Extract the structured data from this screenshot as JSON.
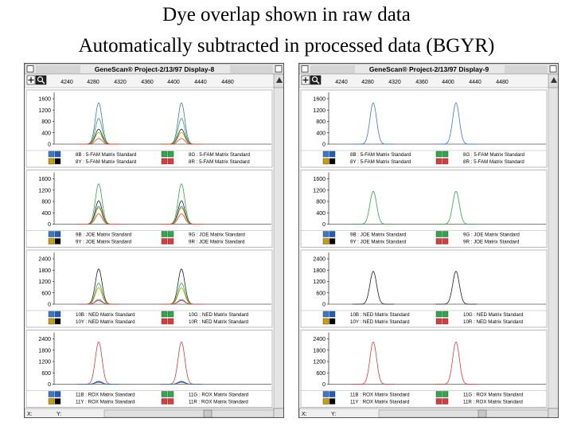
{
  "heading": {
    "line1": "Dye overlap shown in raw data",
    "line2": "Automatically subtracted in processed data (BGYR)"
  },
  "colors": {
    "blue": "#3a78c8",
    "green": "#2ea84a",
    "yellow": "#c8a000",
    "red": "#d83c3c",
    "black": "#202020"
  },
  "windows": [
    {
      "title": "GeneScan® Project-2/13/97 Display-8",
      "mode": "raw",
      "x_ticks": [
        "4240",
        "4280",
        "4320",
        "4360",
        "4400",
        "4440",
        "4480"
      ],
      "status": {
        "x_label": "X:",
        "y_label": "Y:"
      },
      "panels": [
        {
          "y_ticks": [
            "1600",
            "1200",
            "800",
            "400",
            "0"
          ],
          "legend": [
            [
              "8B : 5-FAM Matrix Standard",
              "8G : 5-FAM Matrix Standard"
            ],
            [
              "8Y : 5-FAM Matrix Standard",
              "8R : 5-FAM Matrix Standard"
            ]
          ]
        },
        {
          "y_ticks": [
            "1600",
            "1200",
            "800",
            "400",
            "0"
          ],
          "legend": [
            [
              "9B : JOE Matrix Standard",
              "9G : JOE Matrix Standard"
            ],
            [
              "9Y : JOE Matrix Standard",
              "9R : JOE Matrix Standard"
            ]
          ]
        },
        {
          "y_ticks": [
            "2400",
            "1800",
            "1200",
            "600",
            "0"
          ],
          "legend": [
            [
              "10B : NED Matrix Standard",
              "10G : NED Matrix Standard"
            ],
            [
              "10Y : NED Matrix Standard",
              "10R : NED Matrix Standard"
            ]
          ]
        },
        {
          "y_ticks": [
            "2400",
            "1800",
            "1200",
            "600",
            "0"
          ],
          "legend": [
            [
              "11B : ROX Matrix Standard",
              "11G : ROX Matrix Standard"
            ],
            [
              "11Y : ROX Matrix Standard",
              "11R : ROX Matrix Standard"
            ]
          ]
        }
      ]
    },
    {
      "title": "GeneScan® Project-2/13/97 Display-9",
      "mode": "processed",
      "x_ticks": [
        "4240",
        "4280",
        "4320",
        "4360",
        "4400",
        "4440",
        "4480"
      ],
      "status": {
        "x_label": "X:",
        "y_label": "Y:"
      },
      "panels": [
        {
          "y_ticks": [
            "1600",
            "1200",
            "800",
            "400",
            "0"
          ],
          "legend": [
            [
              "8B : 5-FAM Matrix Standard",
              "8G : 5-FAM Matrix Standard"
            ],
            [
              "8Y : 5-FAM Matrix Standard",
              "8R : 5-FAM Matrix Standard"
            ]
          ]
        },
        {
          "y_ticks": [
            "1600",
            "1200",
            "800",
            "400",
            "0"
          ],
          "legend": [
            [
              "9B : JOE Matrix Standard",
              "9G : JOE Matrix Standard"
            ],
            [
              "9Y : JOE Matrix Standard",
              "9R : JOE Matrix Standard"
            ]
          ]
        },
        {
          "y_ticks": [
            "2400",
            "1800",
            "1200",
            "600",
            "0"
          ],
          "legend": [
            [
              "10B : NED Matrix Standard",
              "10G : NED Matrix Standard"
            ],
            [
              "10Y : NED Matrix Standard",
              "10R : NED Matrix Standard"
            ]
          ]
        },
        {
          "y_ticks": [
            "2400",
            "1800",
            "1200",
            "600",
            "0"
          ],
          "legend": [
            [
              "11B : ROX Matrix Standard",
              "11G : ROX Matrix Standard"
            ],
            [
              "11Y : ROX Matrix Standard",
              "11R : ROX Matrix Standard"
            ]
          ]
        }
      ]
    }
  ]
}
